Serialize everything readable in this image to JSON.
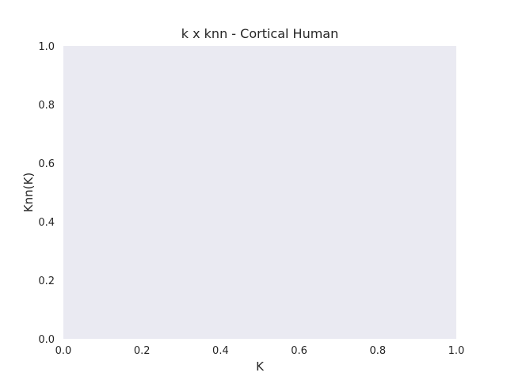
{
  "chart_data": {
    "type": "scatter",
    "title": "k x knn - Cortical Human",
    "xlabel": "K",
    "ylabel": "Knn(K)",
    "xlim": [
      0.0,
      1.0
    ],
    "ylim": [
      0.0,
      1.0
    ],
    "xticks": [
      "0.0",
      "0.2",
      "0.4",
      "0.6",
      "0.8",
      "1.0"
    ],
    "yticks": [
      "0.0",
      "0.2",
      "0.4",
      "0.6",
      "0.8",
      "1.0"
    ],
    "grid": false,
    "series": [],
    "plot_background": "#eaeaf2"
  }
}
